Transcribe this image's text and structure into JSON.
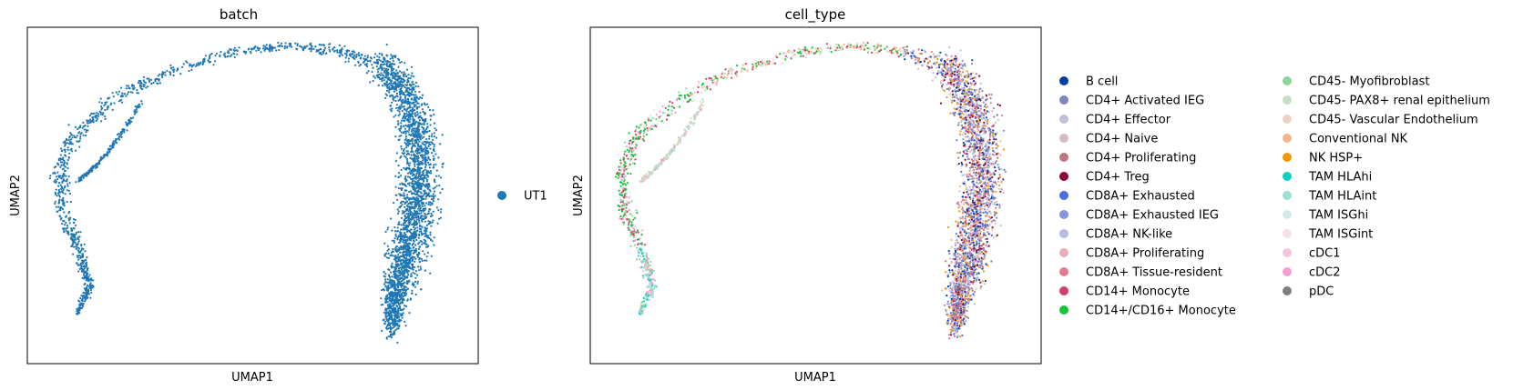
{
  "chart_data": [
    {
      "type": "scatter",
      "title": "batch",
      "xlabel": "UMAP1",
      "ylabel": "UMAP2",
      "grid": false,
      "ticks": false,
      "legend_placement": "right",
      "legend": [
        {
          "name": "UT1",
          "color": "#1f77b4"
        }
      ]
    },
    {
      "type": "scatter",
      "title": "cell_type",
      "xlabel": "UMAP1",
      "ylabel": "UMAP2",
      "grid": false,
      "ticks": false,
      "legend_placement": "right",
      "legend_columns": 2,
      "legend": [
        {
          "name": "B cell",
          "color": "#023fa5"
        },
        {
          "name": "CD4+ Activated IEG",
          "color": "#7d87b9"
        },
        {
          "name": "CD4+ Effector",
          "color": "#bec1d4"
        },
        {
          "name": "CD4+ Naive",
          "color": "#d6bcc0"
        },
        {
          "name": "CD4+ Proliferating",
          "color": "#bb7784"
        },
        {
          "name": "CD4+ Treg",
          "color": "#8e063b"
        },
        {
          "name": "CD8A+ Exhausted",
          "color": "#4a6fe3"
        },
        {
          "name": "CD8A+ Exhausted IEG",
          "color": "#8595e1"
        },
        {
          "name": "CD8A+ NK-like",
          "color": "#b5bbe3"
        },
        {
          "name": "CD8A+ Proliferating",
          "color": "#e6afb9"
        },
        {
          "name": "CD8A+ Tissue-resident",
          "color": "#e07b91"
        },
        {
          "name": "CD14+ Monocyte",
          "color": "#d33f6a"
        },
        {
          "name": "CD14+/CD16+ Monocyte",
          "color": "#11c638"
        },
        {
          "name": "CD45- Myofibroblast",
          "color": "#8dd593"
        },
        {
          "name": "CD45- PAX8+ renal epithelium",
          "color": "#c6dec7"
        },
        {
          "name": "CD45- Vascular Endothelium",
          "color": "#ead3c6"
        },
        {
          "name": "Conventional NK",
          "color": "#f0b98d"
        },
        {
          "name": "NK HSP+",
          "color": "#ef9708"
        },
        {
          "name": "TAM HLAhi",
          "color": "#0fcfc0"
        },
        {
          "name": "TAM HLAint",
          "color": "#9cded6"
        },
        {
          "name": "TAM ISGhi",
          "color": "#d5eae7"
        },
        {
          "name": "TAM ISGint",
          "color": "#f3e1eb"
        },
        {
          "name": "cDC1",
          "color": "#f6c4e1"
        },
        {
          "name": "cDC2",
          "color": "#f79cd4"
        },
        {
          "name": "pDC",
          "color": "#7f7f7f"
        }
      ]
    }
  ]
}
